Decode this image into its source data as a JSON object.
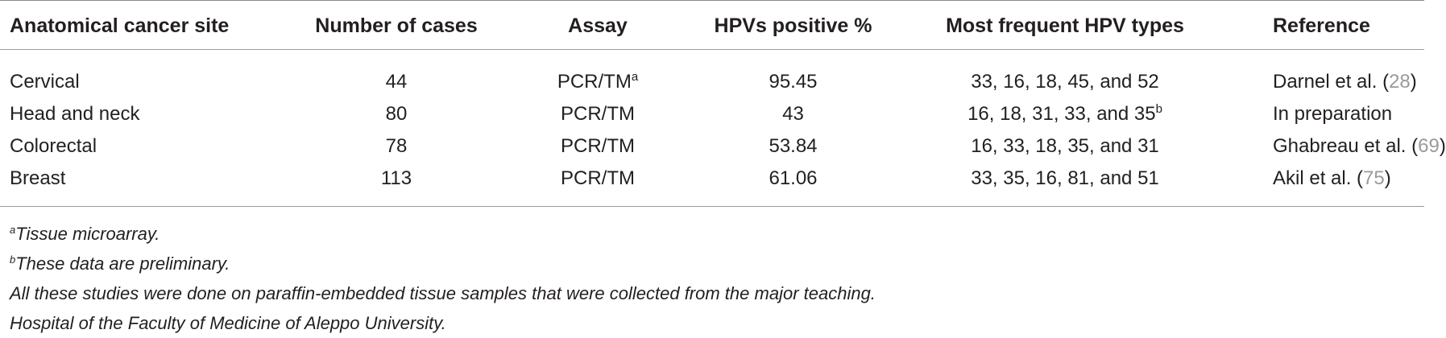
{
  "table": {
    "headers": {
      "site": "Anatomical cancer site",
      "cases": "Number of cases",
      "assay": "Assay",
      "positive": "HPVs positive %",
      "types": "Most frequent HPV types",
      "reference": "Reference"
    },
    "rows": [
      {
        "site": "Cervical",
        "cases": "44",
        "assay": "PCR/TM",
        "assay_sup": "a",
        "positive": "95.45",
        "types": "33, 16, 18, 45, and 52",
        "types_sup": "",
        "ref_text": "Darnel et al. (",
        "ref_num": "28",
        "ref_close": ")"
      },
      {
        "site": "Head and neck",
        "cases": "80",
        "assay": "PCR/TM",
        "assay_sup": "",
        "positive": "43",
        "types": "16, 18, 31, 33, and 35",
        "types_sup": "b",
        "ref_text": "In preparation",
        "ref_num": "",
        "ref_close": ""
      },
      {
        "site": "Colorectal",
        "cases": "78",
        "assay": "PCR/TM",
        "assay_sup": "",
        "positive": "53.84",
        "types": "16, 33, 18, 35, and 31",
        "types_sup": "",
        "ref_text": "Ghabreau et al. (",
        "ref_num": "69",
        "ref_close": ")"
      },
      {
        "site": "Breast",
        "cases": "113",
        "assay": "PCR/TM",
        "assay_sup": "",
        "positive": "61.06",
        "types": "33, 35, 16, 81, and 51",
        "types_sup": "",
        "ref_text": "Akil et al. (",
        "ref_num": "75",
        "ref_close": ")"
      }
    ]
  },
  "footnotes": {
    "a_marker": "a",
    "a_text": "Tissue microarray.",
    "b_marker": "b",
    "b_text": "These data are preliminary.",
    "line3": "All these studies were done on paraffin-embedded tissue samples that were collected from the major teaching.",
    "line4": "Hospital of the Faculty of Medicine of Aleppo University."
  }
}
